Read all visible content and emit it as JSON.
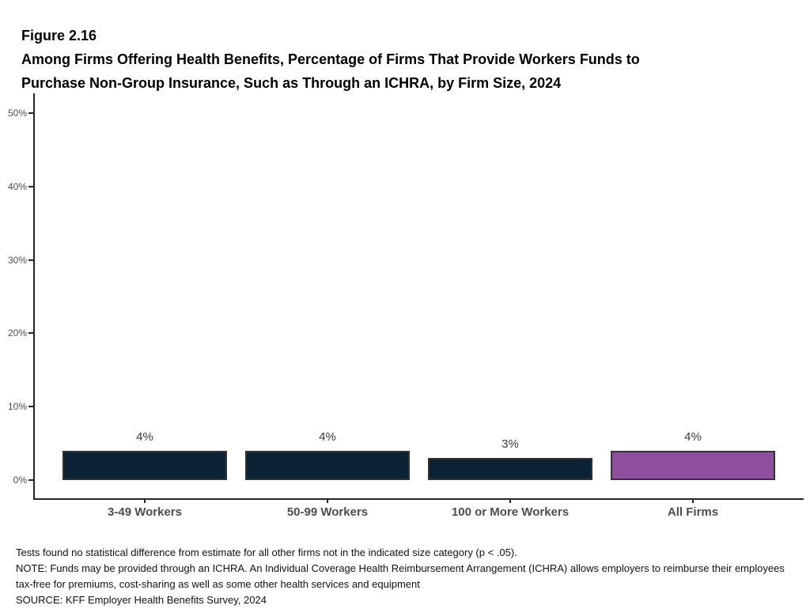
{
  "figure": {
    "label": "Figure 2.16",
    "title_lines": [
      "Among Firms Offering Health Benefits, Percentage of Firms That Provide Workers Funds to",
      "Purchase Non-Group Insurance, Such as Through an ICHRA, by Firm Size, 2024"
    ]
  },
  "chart_data": {
    "type": "bar",
    "title": "Among Firms Offering Health Benefits, Percentage of Firms That Provide Workers Funds to Purchase Non-Group Insurance, Such as Through an ICHRA, by Firm Size, 2024",
    "categories": [
      "3-49 Workers",
      "50-99 Workers",
      "100 or More Workers",
      "All Firms"
    ],
    "values": [
      4,
      4,
      3,
      4
    ],
    "value_labels": [
      "4%",
      "4%",
      "3%",
      "4%"
    ],
    "xlabel": "",
    "ylabel": "",
    "ylim": [
      0,
      52
    ],
    "yticks": [
      0,
      10,
      20,
      30,
      40,
      50
    ],
    "ytick_labels": [
      "0%",
      "10%",
      "20%",
      "30%",
      "40%",
      "50%"
    ],
    "grid": false,
    "legend_position": "none",
    "colors": {
      "bar_fill": [
        "#0b2134",
        "#0b2134",
        "#0b2134",
        "#8e4f9e"
      ],
      "bar_border": "#333333",
      "axis": "#262626",
      "tick_label": "#4d4d4d",
      "value_label": "#383838"
    }
  },
  "footnotes": {
    "stat_note": "Tests found no statistical difference from estimate for all other firms not in the indicated size category (p < .05).",
    "note": "NOTE: Funds may be provided through an ICHRA. An Individual Coverage Health Reimbursement Arrangement (ICHRA) allows employers to reimburse their employees tax-free for premiums, cost-sharing as well as some other health services and equipment",
    "source": "SOURCE: KFF Employer Health Benefits Survey, 2024"
  }
}
